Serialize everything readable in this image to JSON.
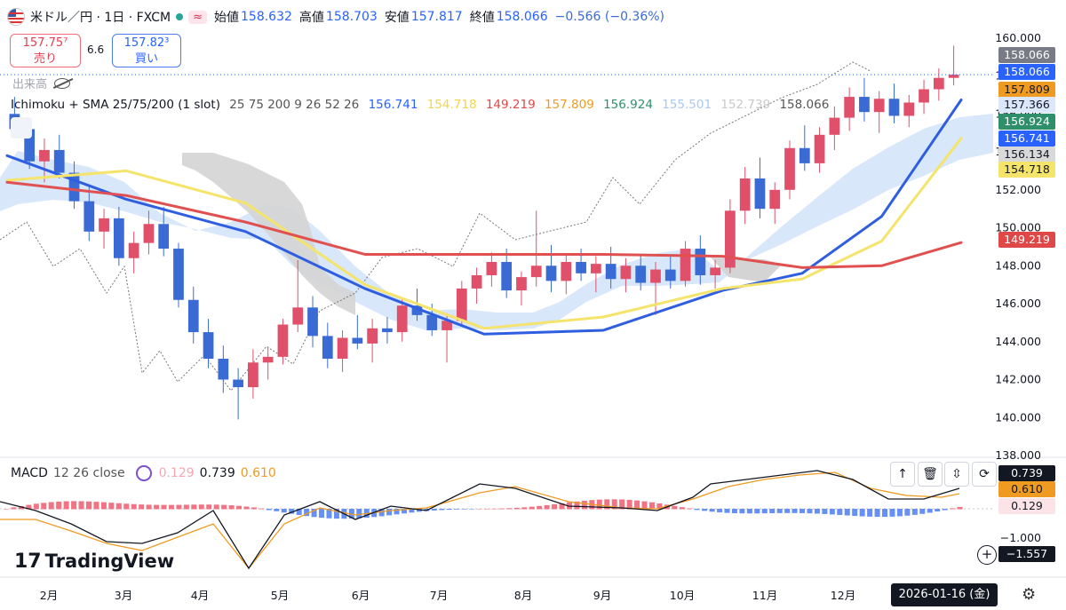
{
  "header": {
    "symbol": "米ドル／円 · 1日 · FXCM",
    "approx_badge": "≈",
    "open_label": "始値",
    "open": "158.632",
    "high_label": "高値",
    "high": "158.703",
    "low_label": "安値",
    "low": "157.817",
    "close_label": "終値",
    "close": "158.066",
    "change": "−0.566 (−0.36%)"
  },
  "trade": {
    "sell_price": "157.75⁷",
    "sell_label": "売り",
    "spread": "6.6",
    "buy_price": "157.82³",
    "buy_label": "買い"
  },
  "volume_label": "出来高",
  "indicator": {
    "name": "Ichimoku + SMA 25/75/200 (1 slot)",
    "params": "25 75 200 9 26 52 26",
    "values": [
      {
        "text": "156.741",
        "color": "#2962ff"
      },
      {
        "text": "154.718",
        "color": "#f5d547"
      },
      {
        "text": "149.219",
        "color": "#e04848"
      },
      {
        "text": "157.809",
        "color": "#ef9a20"
      },
      {
        "text": "156.924",
        "color": "#2f8f6b"
      },
      {
        "text": "155.501",
        "color": "#a9c8f2"
      },
      {
        "text": "152.739",
        "color": "#c9c9c9"
      },
      {
        "text": "158.066",
        "color": "#555555"
      }
    ]
  },
  "macd_header": {
    "name": "MACD",
    "params": "12 26 close",
    "hist": "0.129",
    "macd": "0.739",
    "signal": "0.610"
  },
  "brand": "TradingView",
  "cursor_date": "2026-01-16 (金)",
  "chart_data": [
    {
      "type": "candlestick",
      "title": "米ドル／円 · 1日 · FXCM",
      "x_ticks": [
        "2月",
        "3月",
        "4月",
        "5月",
        "6月",
        "7月",
        "8月",
        "9月",
        "10月",
        "11月",
        "12月"
      ],
      "y_ticks": [
        "160.000",
        "158.000",
        "156.000",
        "154.000",
        "152.000",
        "150.000",
        "148.000",
        "146.000",
        "144.000",
        "142.000",
        "140.000",
        "138.000"
      ],
      "ylim": [
        138,
        160.6
      ],
      "series": [
        {
          "name": "SMA 25",
          "color": "#2f5fe0",
          "x": [
            0,
            30,
            60,
            90,
            120,
            150,
            180,
            200,
            220,
            240
          ],
          "values": [
            153.8,
            151.5,
            149.8,
            146.8,
            144.4,
            144.6,
            146.7,
            147.6,
            150.6,
            156.74
          ]
        },
        {
          "name": "SMA 75",
          "color": "#f5e46b",
          "x": [
            0,
            30,
            60,
            90,
            120,
            150,
            180,
            200,
            220,
            240
          ],
          "values": [
            152.5,
            153.0,
            151.3,
            147.0,
            144.7,
            145.3,
            146.8,
            147.3,
            149.3,
            154.72
          ]
        },
        {
          "name": "SMA 200",
          "color": "#e05050",
          "x": [
            0,
            30,
            60,
            90,
            120,
            150,
            180,
            200,
            220,
            240
          ],
          "values": [
            152.4,
            151.7,
            150.3,
            148.6,
            148.6,
            148.6,
            148.5,
            147.9,
            148.0,
            149.22
          ]
        }
      ],
      "candles_ohlc": [
        [
          156.0,
          156.9,
          154.8,
          155.2
        ],
        [
          155.2,
          155.6,
          153.1,
          153.5
        ],
        [
          153.5,
          154.7,
          152.4,
          154.1
        ],
        [
          154.1,
          154.9,
          152.6,
          152.9
        ],
        [
          152.9,
          153.5,
          151.0,
          151.4
        ],
        [
          151.4,
          152.2,
          149.3,
          149.8
        ],
        [
          149.8,
          151.0,
          148.9,
          150.5
        ],
        [
          150.5,
          151.1,
          148.0,
          148.4
        ],
        [
          148.4,
          149.8,
          147.6,
          149.2
        ],
        [
          149.2,
          150.9,
          148.6,
          150.2
        ],
        [
          150.2,
          151.1,
          148.5,
          148.9
        ],
        [
          148.9,
          149.2,
          145.8,
          146.2
        ],
        [
          146.2,
          146.9,
          143.9,
          144.5
        ],
        [
          144.5,
          145.2,
          142.6,
          143.1
        ],
        [
          143.1,
          143.8,
          141.3,
          142.0
        ],
        [
          142.0,
          142.6,
          139.9,
          141.6
        ],
        [
          141.6,
          143.6,
          141.0,
          142.9
        ],
        [
          142.9,
          143.7,
          142.0,
          143.2
        ],
        [
          143.2,
          145.2,
          142.8,
          144.9
        ],
        [
          144.9,
          148.3,
          144.5,
          145.8
        ],
        [
          145.8,
          146.4,
          143.7,
          144.3
        ],
        [
          144.3,
          145.0,
          142.6,
          143.1
        ],
        [
          143.1,
          144.6,
          142.4,
          144.2
        ],
        [
          144.2,
          145.4,
          143.6,
          143.9
        ],
        [
          143.9,
          145.2,
          142.9,
          144.7
        ],
        [
          144.7,
          145.3,
          143.9,
          144.5
        ],
        [
          144.5,
          146.3,
          144.0,
          145.9
        ],
        [
          145.9,
          146.8,
          145.1,
          145.4
        ],
        [
          145.4,
          146.0,
          144.3,
          144.6
        ],
        [
          144.6,
          145.5,
          142.9,
          145.1
        ],
        [
          145.1,
          147.2,
          144.8,
          146.8
        ],
        [
          146.8,
          147.9,
          146.0,
          147.5
        ],
        [
          147.5,
          148.7,
          146.9,
          148.2
        ],
        [
          148.2,
          148.9,
          146.3,
          146.7
        ],
        [
          146.7,
          147.7,
          145.9,
          147.4
        ],
        [
          147.4,
          150.9,
          146.9,
          148.0
        ],
        [
          148.0,
          149.1,
          146.6,
          147.2
        ],
        [
          147.2,
          148.6,
          146.5,
          148.2
        ],
        [
          148.2,
          148.9,
          147.2,
          147.6
        ],
        [
          147.6,
          148.5,
          146.6,
          148.1
        ],
        [
          148.1,
          149.0,
          146.8,
          147.3
        ],
        [
          147.3,
          148.4,
          146.6,
          148.0
        ],
        [
          148.0,
          148.6,
          146.7,
          147.1
        ],
        [
          147.1,
          148.2,
          145.4,
          147.8
        ],
        [
          147.8,
          148.5,
          146.8,
          147.2
        ],
        [
          147.2,
          149.3,
          146.9,
          148.9
        ],
        [
          148.9,
          149.6,
          147.0,
          147.5
        ],
        [
          147.5,
          148.3,
          146.8,
          147.9
        ],
        [
          147.9,
          151.5,
          147.6,
          150.9
        ],
        [
          150.9,
          153.2,
          150.2,
          152.6
        ],
        [
          152.6,
          153.7,
          150.5,
          151.0
        ],
        [
          151.0,
          152.4,
          150.2,
          152.0
        ],
        [
          152.0,
          154.6,
          151.5,
          154.2
        ],
        [
          154.2,
          155.4,
          153.0,
          153.4
        ],
        [
          153.4,
          155.3,
          152.9,
          154.9
        ],
        [
          154.9,
          156.4,
          154.1,
          155.8
        ],
        [
          155.8,
          157.4,
          155.1,
          156.9
        ],
        [
          156.9,
          157.9,
          155.6,
          156.1
        ],
        [
          156.1,
          157.2,
          155.0,
          156.8
        ],
        [
          156.8,
          157.6,
          155.5,
          155.9
        ],
        [
          155.9,
          157.0,
          155.3,
          156.6
        ],
        [
          156.6,
          157.8,
          156.0,
          157.3
        ],
        [
          157.3,
          158.4,
          156.7,
          157.9
        ],
        [
          157.9,
          159.6,
          157.5,
          158.07
        ]
      ],
      "last_price": "158.066"
    },
    {
      "type": "line",
      "title": "MACD 12 26 close",
      "series": [
        {
          "name": "MACD",
          "color": "#131722"
        },
        {
          "name": "Signal",
          "color": "#ef9a20"
        }
      ],
      "y_ticks": [
        "−1.000"
      ],
      "last_values": {
        "macd": "0.739",
        "signal": "0.610",
        "hist": "0.129",
        "cursor": "−1.557"
      }
    }
  ],
  "price_labels": [
    {
      "text": "158.066",
      "bg": "#787b86",
      "fg": "#ffffff",
      "y": 158.066
    },
    {
      "text": "158.066",
      "bg": "#2962ff",
      "fg": "#ffffff",
      "y": 158.066
    },
    {
      "text": "157.809",
      "bg": "#ef9a20",
      "fg": "#131722",
      "y": 157.809
    },
    {
      "text": "157.366",
      "bg": "#dbe8fb",
      "fg": "#131722",
      "y": 157.366
    },
    {
      "text": "156.924",
      "bg": "#2f8f6b",
      "fg": "#ffffff",
      "y": 156.924
    },
    {
      "text": "156.741",
      "bg": "#2962ff",
      "fg": "#ffffff",
      "y": 156.741
    },
    {
      "text": "156.134",
      "bg": "#d9d9d9",
      "fg": "#131722",
      "y": 156.134
    },
    {
      "text": "154.718",
      "bg": "#f5e46b",
      "fg": "#131722",
      "y": 154.718
    },
    {
      "text": "149.219",
      "bg": "#e04848",
      "fg": "#ffffff",
      "y": 149.219
    }
  ]
}
